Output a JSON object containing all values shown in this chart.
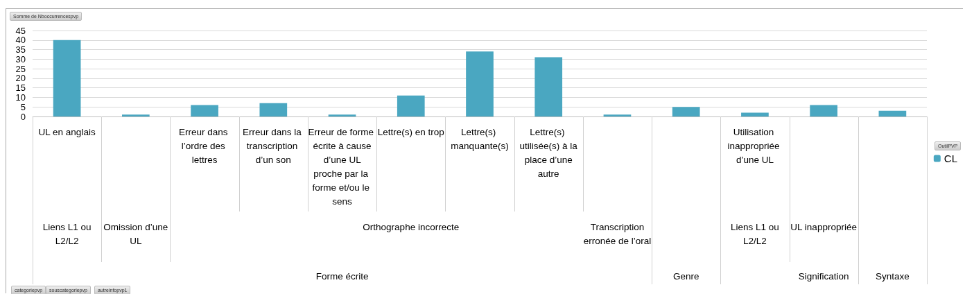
{
  "chart_data": {
    "type": "bar",
    "title": "Somme de Nboccurrencespvp",
    "legend_title": "OutilPVP",
    "categories": [
      "UL en anglais",
      null,
      "Erreur dans l’ordre des lettres",
      "Erreur dans la transcription d’un son",
      "Erreur de forme écrite à cause d’une UL proche par la forme et/ou le sens",
      "Lettre(s) en trop",
      "Lettre(s) manquante(s)",
      "Lettre(s) utilisée(s) à la place d’une autre",
      null,
      null,
      "Utilisation inappropriée d’une UL",
      null,
      null
    ],
    "series": [
      {
        "name": "CL",
        "color": "#4aa7c1",
        "values": [
          40,
          1,
          6,
          7,
          1,
          11,
          34,
          31,
          1,
          5,
          2,
          6,
          3
        ]
      }
    ],
    "ylim": [
      0,
      45
    ],
    "yticks": [
      0,
      5,
      10,
      15,
      20,
      25,
      30,
      35,
      40,
      45
    ],
    "grid": "y",
    "legend": "right",
    "annotations": [
      "Liens L1 ou L2/L2",
      "Omission d’une UL",
      "Orthographe incorrecte",
      "Transcription erronée de l’oral",
      "Liens L1 ou L2/L2",
      "UL inappropriée",
      "Forme écrite",
      "Genre",
      "Signification",
      "Syntaxe",
      "categoriepvp",
      "souscategoriepvp",
      "autreinfopvp1"
    ]
  }
}
